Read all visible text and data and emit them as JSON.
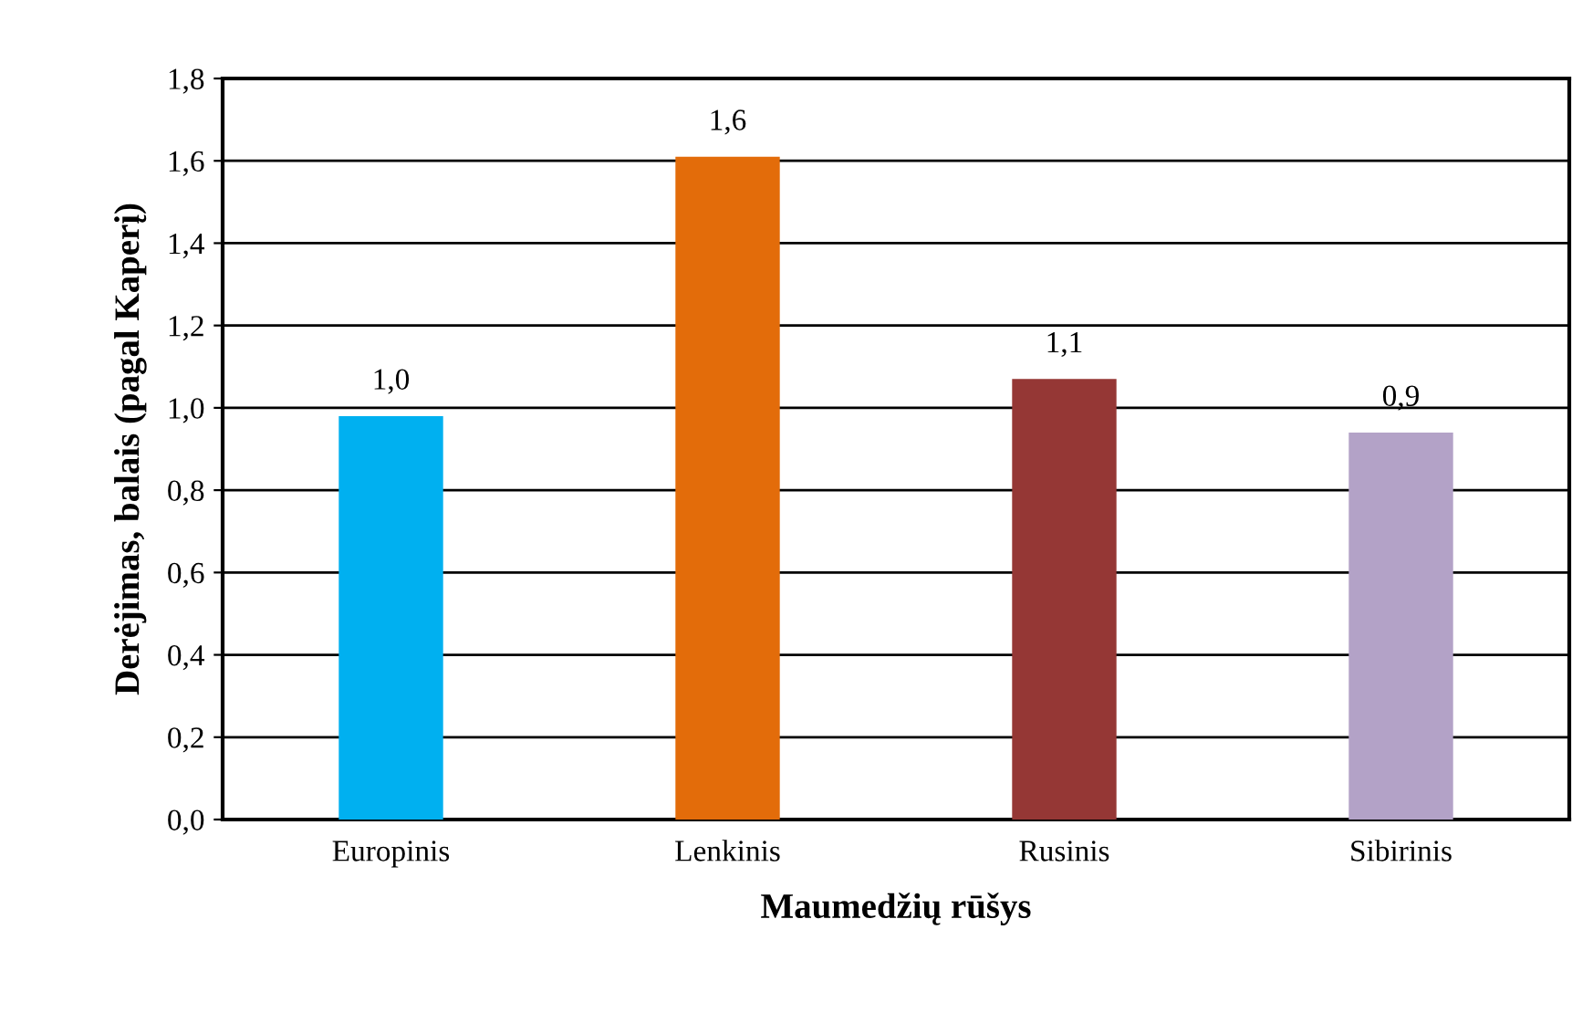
{
  "chart_data": {
    "type": "bar",
    "xlabel": "Maumedžių rūšys",
    "ylabel": "Derėjimas, balais (pagal Kaperį)",
    "categories": [
      "Europinis",
      "Lenkinis",
      "Rusinis",
      "Sibirinis"
    ],
    "values": [
      0.98,
      1.61,
      1.07,
      0.94
    ],
    "colors": [
      "#00b0f0",
      "#e36c0a",
      "#953735",
      "#b3a2c7"
    ],
    "value_labels": [
      "1,0",
      "1,6",
      "1,1",
      "0,9"
    ],
    "ylim": [
      0,
      1.8
    ],
    "yticks": [
      {
        "value": 0,
        "label": "0,0"
      },
      {
        "value": 0.2,
        "label": "0,2"
      },
      {
        "value": 0.4,
        "label": "0,4"
      },
      {
        "value": 0.6,
        "label": "0,6"
      },
      {
        "value": 0.8,
        "label": "0,8"
      },
      {
        "value": 1.0,
        "label": "1,0"
      },
      {
        "value": 1.2,
        "label": "1,2"
      },
      {
        "value": 1.4,
        "label": "1,4"
      },
      {
        "value": 1.6,
        "label": "1,6"
      },
      {
        "value": 1.8,
        "label": "1,8"
      }
    ],
    "grid": "y"
  }
}
